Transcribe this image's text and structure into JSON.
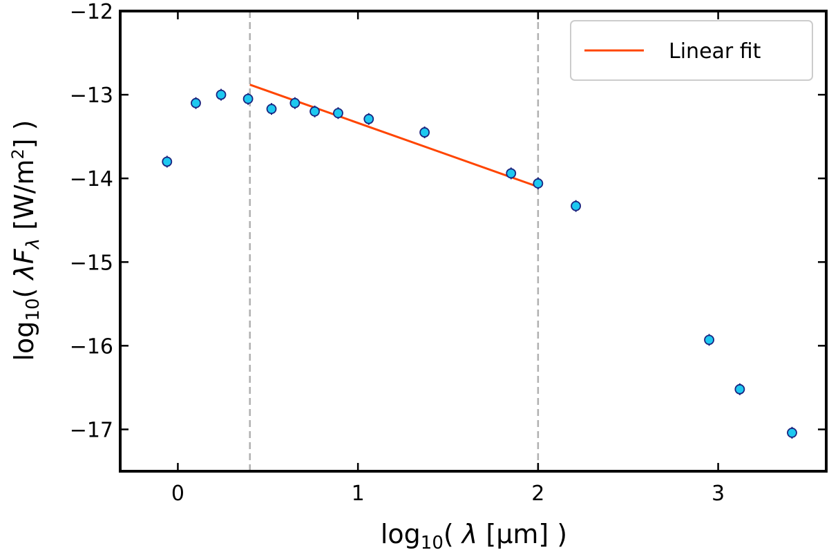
{
  "chart_data": {
    "type": "scatter",
    "xlabel": {
      "prefix": "log",
      "sub": "10",
      "mid": "( ",
      "sym": "λ",
      "unit": "  [μm] )"
    },
    "ylabel": {
      "prefix": "log",
      "sub": "10",
      "mid": "( ",
      "sym": "λF",
      "symsub": "λ",
      "unit1": "  [W/m",
      "sup": "2",
      "unit2": "] )"
    },
    "xlim": [
      -0.32,
      3.6
    ],
    "ylim": [
      -17.5,
      -12
    ],
    "x_ticks": [
      "0",
      "1",
      "2",
      "3"
    ],
    "y_ticks": [
      "−12",
      "−13",
      "−14",
      "−15",
      "−16",
      "−17"
    ],
    "x_tick_values": [
      0,
      1,
      2,
      3
    ],
    "y_tick_values": [
      -12,
      -13,
      -14,
      -15,
      -16,
      -17
    ],
    "grid": false,
    "legend_position": "top-right",
    "vertical_lines": [
      0.4,
      2.0
    ],
    "series": [
      {
        "type": "scatter",
        "color": "#1ec8f0",
        "edge_color": "#1a237e",
        "x": [
          -0.06,
          0.1,
          0.24,
          0.39,
          0.52,
          0.65,
          0.76,
          0.89,
          1.06,
          1.37,
          1.85,
          2.0,
          2.21,
          2.95,
          3.12,
          3.41
        ],
        "y": [
          -13.8,
          -13.1,
          -13.0,
          -13.05,
          -13.17,
          -13.1,
          -13.2,
          -13.22,
          -13.29,
          -13.45,
          -13.94,
          -14.06,
          -14.33,
          -15.93,
          -16.52,
          -17.04
        ],
        "yerr": 0.07
      },
      {
        "name": "Linear fit",
        "type": "line",
        "color": "#ff4500",
        "x": [
          0.4,
          2.0
        ],
        "y": [
          -12.88,
          -14.1
        ]
      }
    ]
  }
}
